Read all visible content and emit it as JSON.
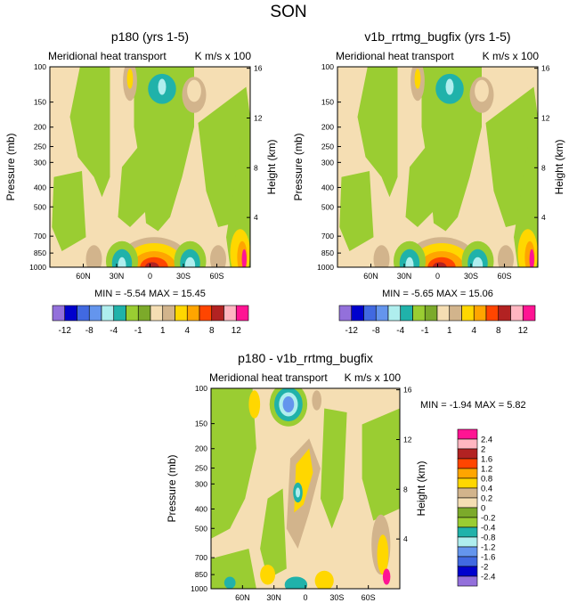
{
  "figure": {
    "title": "SON"
  },
  "chart_data": [
    {
      "type": "heatmap",
      "title": "p180 (yrs 1-5)",
      "subtitle_left": "Meridional heat transport",
      "subtitle_right": "K m/s x 100",
      "ylabel": "Pressure (mb)",
      "ylabel_right": "Height (km)",
      "pressure_ticks": [
        "100",
        "150",
        "200",
        "250",
        "300",
        "400",
        "500",
        "700",
        "850",
        "1000"
      ],
      "pressure_values": [
        100,
        150,
        200,
        250,
        300,
        400,
        500,
        700,
        850,
        1000
      ],
      "height_ticks": [
        "16",
        "12",
        "8",
        "4"
      ],
      "height_values": [
        16,
        12,
        8,
        4
      ],
      "lat_ticks": [
        "60N",
        "30N",
        "0",
        "30S",
        "60S"
      ],
      "lat_values": [
        60,
        30,
        0,
        -30,
        -60
      ],
      "xlim": [
        90,
        -90
      ],
      "ylim": [
        100,
        1000
      ],
      "stats": "MIN =  -5.54   MAX =  15.45"
    },
    {
      "type": "heatmap",
      "title": "v1b_rrtmg_bugfix (yrs 1-5)",
      "subtitle_left": "Meridional heat transport",
      "subtitle_right": "K m/s x 100",
      "ylabel": "Pressure (mb)",
      "ylabel_right": "Height (km)",
      "pressure_ticks": [
        "100",
        "150",
        "200",
        "250",
        "300",
        "400",
        "500",
        "700",
        "850",
        "1000"
      ],
      "pressure_values": [
        100,
        150,
        200,
        250,
        300,
        400,
        500,
        700,
        850,
        1000
      ],
      "height_ticks": [
        "16",
        "12",
        "8",
        "4"
      ],
      "height_values": [
        16,
        12,
        8,
        4
      ],
      "lat_ticks": [
        "60N",
        "30N",
        "0",
        "30S",
        "60S"
      ],
      "lat_values": [
        60,
        30,
        0,
        -30,
        -60
      ],
      "xlim": [
        90,
        -90
      ],
      "ylim": [
        100,
        1000
      ],
      "stats": "MIN =  -5.65   MAX =  15.06"
    },
    {
      "type": "heatmap",
      "title": "p180 - v1b_rrtmg_bugfix",
      "subtitle_left": "Meridional heat transport",
      "subtitle_right": "K m/s x 100",
      "ylabel": "Pressure (mb)",
      "ylabel_right": "Height (km)",
      "pressure_ticks": [
        "100",
        "150",
        "200",
        "250",
        "300",
        "400",
        "500",
        "700",
        "850",
        "1000"
      ],
      "pressure_values": [
        100,
        150,
        200,
        250,
        300,
        400,
        500,
        700,
        850,
        1000
      ],
      "height_ticks": [
        "16",
        "12",
        "8",
        "4"
      ],
      "height_values": [
        16,
        12,
        8,
        4
      ],
      "lat_ticks": [
        "60N",
        "30N",
        "0",
        "30S",
        "60S"
      ],
      "lat_values": [
        60,
        30,
        0,
        -30,
        -60
      ],
      "xlim": [
        90,
        -90
      ],
      "ylim": [
        100,
        1000
      ],
      "stats": "MIN =  -1.94   MAX =   5.82"
    }
  ],
  "colorbar_top": {
    "labels": [
      "-12",
      "-8",
      "-4",
      "-1",
      "1",
      "4",
      "8",
      "12"
    ],
    "colors": [
      "#9370db",
      "#0000cd",
      "#4169e1",
      "#6495ed",
      "#afeeee",
      "#20b2aa",
      "#9acd32",
      "#7caa2a",
      "#f5deb3",
      "#d2b48c",
      "#ffd700",
      "#ffa500",
      "#ff4500",
      "#b22222",
      "#ffb6c1",
      "#ff1493"
    ]
  },
  "colorbar_diff": {
    "labels": [
      "2.4",
      "2",
      "1.6",
      "1.2",
      "0.8",
      "0.4",
      "0.2",
      "0",
      "-0.2",
      "-0.4",
      "-0.8",
      "-1.2",
      "-1.6",
      "-2",
      "-2.4"
    ],
    "colors": [
      "#ff1493",
      "#ffb6c1",
      "#b22222",
      "#ff4500",
      "#ffa500",
      "#ffd700",
      "#d2b48c",
      "#f5deb3",
      "#7caa2a",
      "#9acd32",
      "#20b2aa",
      "#afeeee",
      "#6495ed",
      "#4169e1",
      "#0000cd",
      "#9370db"
    ]
  },
  "palette": {
    "tan": "#f5deb3",
    "green": "#9acd32",
    "olive": "#7caa2a",
    "darktan": "#d2b48c",
    "gold": "#ffd700",
    "orange": "#ffa500",
    "red": "#ff4500",
    "darkred": "#b22222",
    "pink": "#ffb6c1",
    "magenta": "#ff1493",
    "teal": "#20b2aa",
    "lightcyan": "#afeeee",
    "cornflower": "#6495ed",
    "royal": "#4169e1",
    "navy": "#0000cd",
    "purple": "#9370db"
  }
}
